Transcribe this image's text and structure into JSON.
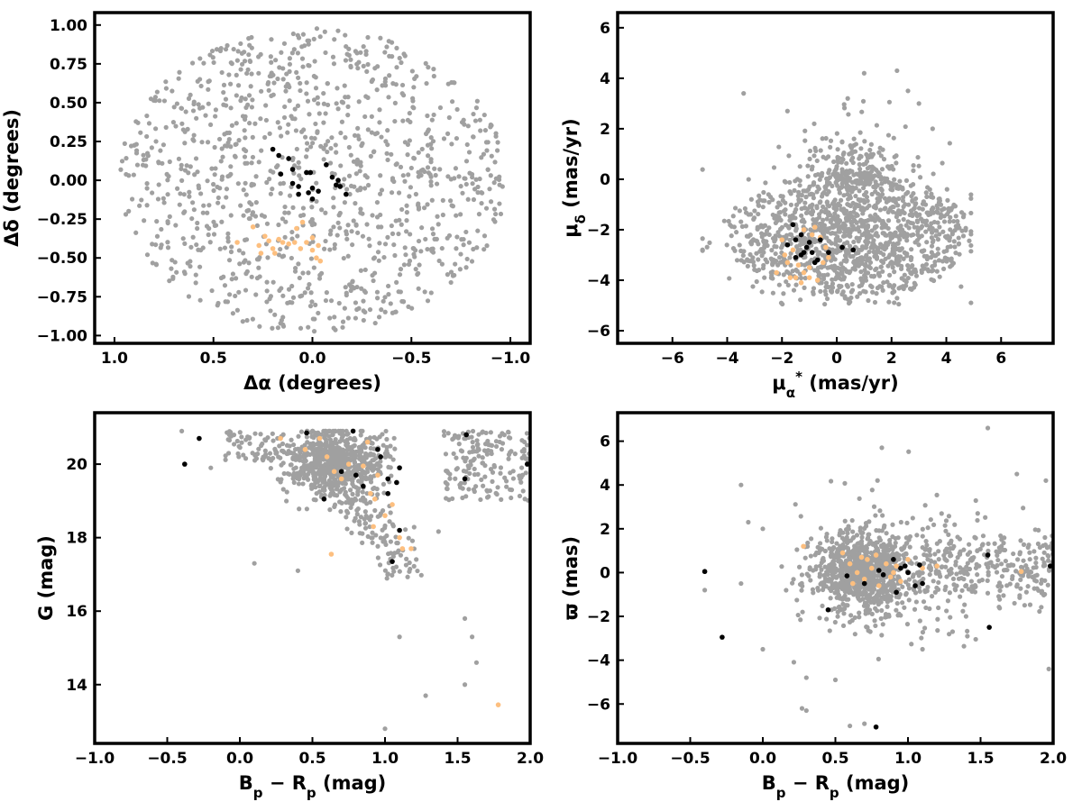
{
  "colors": {
    "background_stars": "#a0a0a0",
    "group_black": "#000000",
    "group_orange": "#fdbf7f",
    "axes": "#000000"
  },
  "chart_data": [
    {
      "id": "sky",
      "type": "scatter",
      "xlabel": "Δα (degrees)",
      "ylabel": "Δδ (degrees)",
      "xlim": [
        1.1,
        -1.1
      ],
      "ylim": [
        -1.05,
        1.08
      ],
      "x_inverted": true,
      "xticks": [
        1.0,
        0.5,
        0.0,
        -0.5,
        -1.0
      ],
      "xtick_labels": [
        "1.0",
        "0.5",
        "0.0",
        "−0.5",
        "−1.0"
      ],
      "yticks": [
        -1.0,
        -0.75,
        -0.5,
        -0.25,
        0.0,
        0.25,
        0.5,
        0.75,
        1.0
      ],
      "ytick_labels": [
        "−1.00",
        "−0.75",
        "−0.50",
        "−0.25",
        "0.00",
        "0.25",
        "0.50",
        "0.75",
        "1.00"
      ],
      "background": {
        "distribution": "uniform disk",
        "center": [
          0,
          0
        ],
        "radius": 0.98,
        "count": 1100
      },
      "series_black": [
        [
          0.2,
          0.2
        ],
        [
          0.17,
          0.16
        ],
        [
          0.12,
          0.14
        ],
        [
          0.16,
          0.04
        ],
        [
          0.1,
          0.07
        ],
        [
          0.1,
          -0.02
        ],
        [
          0.07,
          -0.04
        ],
        [
          0.07,
          -0.09
        ],
        [
          0.03,
          0.05
        ],
        [
          0.01,
          0.05
        ],
        [
          0.0,
          -0.05
        ],
        [
          -0.03,
          -0.07
        ],
        [
          0.0,
          -0.12
        ],
        [
          -0.07,
          0.1
        ],
        [
          -0.1,
          0.02
        ],
        [
          -0.12,
          -0.03
        ],
        [
          -0.14,
          -0.04
        ],
        [
          -0.17,
          -0.09
        ],
        [
          0.02,
          -0.08
        ],
        [
          -0.13,
          0.0
        ]
      ],
      "series_orange": [
        [
          0.38,
          -0.4
        ],
        [
          0.3,
          -0.3
        ],
        [
          0.27,
          -0.42
        ],
        [
          0.26,
          -0.47
        ],
        [
          0.24,
          -0.36
        ],
        [
          0.22,
          -0.39
        ],
        [
          0.2,
          -0.44
        ],
        [
          0.17,
          -0.38
        ],
        [
          0.15,
          -0.4
        ],
        [
          0.12,
          -0.41
        ],
        [
          0.09,
          -0.4
        ],
        [
          0.08,
          -0.31
        ],
        [
          0.05,
          -0.27
        ],
        [
          0.0,
          -0.37
        ],
        [
          0.0,
          -0.45
        ],
        [
          -0.02,
          -0.5
        ],
        [
          -0.04,
          -0.52
        ],
        [
          0.03,
          -0.4
        ],
        [
          -0.03,
          -0.42
        ],
        [
          0.19,
          -0.47
        ],
        [
          0.06,
          -0.44
        ]
      ]
    },
    {
      "id": "pm",
      "type": "scatter",
      "xlabel": "μα* (mas/yr)",
      "ylabel": "μδ (mas/yr)",
      "xlim": [
        -8,
        7.9
      ],
      "ylim": [
        -6.5,
        6.6
      ],
      "xticks": [
        -6,
        -4,
        -2,
        0,
        2,
        4,
        6
      ],
      "xtick_labels": [
        "−6",
        "−4",
        "−2",
        "0",
        "2",
        "4",
        "6"
      ],
      "yticks": [
        -6,
        -4,
        -2,
        0,
        2,
        4,
        6
      ],
      "ytick_labels": [
        "−6",
        "−4",
        "−2",
        "0",
        "2",
        "4",
        "6"
      ],
      "background": {
        "distribution": "elliptical cloud",
        "center": [
          0.5,
          -2.2
        ],
        "semi_axes": [
          4.4,
          2.5
        ],
        "count": 1300,
        "outliers": [
          [
            -3.4,
            3.4
          ],
          [
            1.0,
            4.2
          ],
          [
            2.2,
            4.3
          ],
          [
            2.6,
            3.5
          ],
          [
            3.0,
            3.0
          ],
          [
            -1.8,
            2.7
          ],
          [
            0.4,
            3.2
          ],
          [
            3.5,
            2.0
          ]
        ]
      },
      "series_black": [
        [
          -1.6,
          -1.8
        ],
        [
          -1.3,
          -2.2
        ],
        [
          -1.0,
          -2.5
        ],
        [
          -1.5,
          -2.4
        ],
        [
          -1.8,
          -2.6
        ],
        [
          -1.1,
          -2.7
        ],
        [
          -0.9,
          -2.9
        ],
        [
          -1.3,
          -3.0
        ],
        [
          -0.8,
          -3.3
        ],
        [
          -1.5,
          -3.1
        ],
        [
          -0.7,
          -3.2
        ],
        [
          0.2,
          -2.7
        ],
        [
          0.6,
          -2.8
        ],
        [
          -0.3,
          -2.9
        ],
        [
          -1.2,
          -2.9
        ],
        [
          -0.6,
          -2.4
        ]
      ],
      "series_orange": [
        [
          -2.2,
          -3.7
        ],
        [
          -1.8,
          -3.3
        ],
        [
          -1.5,
          -3.9
        ],
        [
          -1.3,
          -4.1
        ],
        [
          -1.0,
          -3.5
        ],
        [
          -0.7,
          -4.0
        ],
        [
          -0.6,
          -2.3
        ],
        [
          -0.4,
          -2.7
        ],
        [
          -1.2,
          -2.0
        ],
        [
          -0.8,
          -1.9
        ],
        [
          -1.9,
          -3.0
        ],
        [
          -1.4,
          -3.4
        ],
        [
          -1.0,
          -3.9
        ],
        [
          -0.5,
          -3.3
        ],
        [
          -2.0,
          -2.4
        ],
        [
          -1.6,
          -2.8
        ],
        [
          -0.9,
          -2.2
        ],
        [
          -1.2,
          -3.7
        ],
        [
          -0.3,
          -3.1
        ],
        [
          -1.7,
          -3.9
        ]
      ]
    },
    {
      "id": "cmd",
      "type": "scatter",
      "xlabel": "Bp − Rp (mag)",
      "ylabel": "G (mag)",
      "xlim": [
        -1.0,
        2.0
      ],
      "ylim": [
        12.4,
        21.4
      ],
      "y_inverted": false,
      "xticks": [
        -1.0,
        -0.5,
        0.0,
        0.5,
        1.0,
        1.5,
        2.0
      ],
      "xtick_labels": [
        "−1.0",
        "−0.5",
        "0.0",
        "0.5",
        "1.0",
        "1.5",
        "2.0"
      ],
      "yticks": [
        14,
        16,
        18,
        20
      ],
      "ytick_labels": [
        "14",
        "16",
        "18",
        "20"
      ],
      "background": {
        "distribution": "faint clump + tail",
        "clump_center": [
          0.65,
          20.1
        ],
        "count": 1000,
        "outliers": [
          [
            -0.4,
            20.9
          ],
          [
            -0.2,
            19.9
          ],
          [
            0.1,
            17.3
          ],
          [
            0.4,
            17.1
          ],
          [
            1.0,
            12.8
          ],
          [
            1.28,
            13.7
          ],
          [
            1.55,
            14.0
          ],
          [
            1.63,
            14.6
          ],
          [
            1.6,
            15.3
          ],
          [
            1.55,
            15.8
          ],
          [
            1.1,
            15.3
          ]
        ]
      },
      "series_black": [
        [
          -0.38,
          20.0
        ],
        [
          -0.28,
          20.7
        ],
        [
          0.46,
          20.85
        ],
        [
          0.58,
          19.05
        ],
        [
          0.7,
          19.8
        ],
        [
          0.78,
          20.9
        ],
        [
          0.8,
          19.7
        ],
        [
          0.85,
          19.4
        ],
        [
          0.95,
          20.4
        ],
        [
          0.97,
          20.2
        ],
        [
          1.02,
          19.6
        ],
        [
          1.02,
          19.2
        ],
        [
          1.08,
          19.5
        ],
        [
          1.1,
          19.9
        ],
        [
          1.1,
          18.2
        ],
        [
          1.05,
          17.35
        ],
        [
          1.55,
          19.6
        ],
        [
          1.56,
          20.8
        ],
        [
          1.98,
          20.0
        ]
      ],
      "series_orange": [
        [
          0.28,
          20.7
        ],
        [
          0.45,
          20.4
        ],
        [
          0.55,
          20.7
        ],
        [
          0.6,
          20.2
        ],
        [
          0.65,
          19.8
        ],
        [
          0.7,
          19.6
        ],
        [
          0.75,
          20.0
        ],
        [
          0.85,
          19.95
        ],
        [
          0.88,
          20.6
        ],
        [
          0.9,
          19.2
        ],
        [
          0.92,
          18.3
        ],
        [
          0.95,
          19.7
        ],
        [
          1.0,
          18.6
        ],
        [
          1.05,
          18.9
        ],
        [
          1.1,
          18.0
        ],
        [
          1.12,
          17.7
        ],
        [
          1.18,
          17.7
        ],
        [
          0.63,
          17.55
        ],
        [
          1.78,
          13.45
        ],
        [
          0.93,
          19.05
        ]
      ]
    },
    {
      "id": "parallax",
      "type": "scatter",
      "xlabel": "Bp − Rp (mag)",
      "ylabel": "ϖ (mas)",
      "xlim": [
        -1.0,
        2.0
      ],
      "ylim": [
        -7.8,
        7.3
      ],
      "xticks": [
        -1.0,
        -0.5,
        0.0,
        0.5,
        1.0,
        1.5,
        2.0
      ],
      "xtick_labels": [
        "−1.0",
        "−0.5",
        "0.0",
        "0.5",
        "1.0",
        "1.5",
        "2.0"
      ],
      "yticks": [
        -6,
        -4,
        -2,
        0,
        2,
        4,
        6
      ],
      "ytick_labels": [
        "−6",
        "−4",
        "−2",
        "0",
        "2",
        "4",
        "6"
      ],
      "background": {
        "distribution": "horizontal band",
        "center": [
          0.8,
          0.0
        ],
        "count": 1300,
        "outliers": [
          [
            -0.15,
            4.0
          ],
          [
            0.0,
            2.0
          ],
          [
            -0.1,
            2.3
          ],
          [
            1.55,
            6.6
          ],
          [
            0.82,
            5.7
          ],
          [
            0.6,
            -7.0
          ],
          [
            0.7,
            -6.9
          ],
          [
            0.3,
            -6.3
          ],
          [
            0.27,
            -6.2
          ],
          [
            0.3,
            -4.8
          ],
          [
            0.5,
            -4.9
          ],
          [
            1.1,
            -3.5
          ],
          [
            1.4,
            -2.0
          ],
          [
            1.75,
            4.5
          ],
          [
            1.95,
            4.2
          ],
          [
            1.97,
            -4.4
          ],
          [
            -0.4,
            -0.8
          ],
          [
            0.0,
            -3.5
          ],
          [
            -0.15,
            -0.5
          ]
        ]
      },
      "series_black": [
        [
          -0.4,
          0.05
        ],
        [
          -0.28,
          -2.95
        ],
        [
          0.45,
          -1.7
        ],
        [
          0.58,
          -0.15
        ],
        [
          0.7,
          -0.5
        ],
        [
          0.8,
          0.1
        ],
        [
          0.83,
          -0.1
        ],
        [
          0.9,
          0.6
        ],
        [
          0.92,
          -0.9
        ],
        [
          0.95,
          0.2
        ],
        [
          0.98,
          0.3
        ],
        [
          1.0,
          0.0
        ],
        [
          1.05,
          -0.6
        ],
        [
          1.08,
          0.35
        ],
        [
          1.1,
          -0.5
        ],
        [
          0.78,
          -7.05
        ],
        [
          1.55,
          0.8
        ],
        [
          1.56,
          -2.5
        ],
        [
          1.98,
          0.3
        ]
      ],
      "series_orange": [
        [
          0.28,
          1.2
        ],
        [
          0.55,
          0.9
        ],
        [
          0.6,
          0.4
        ],
        [
          0.65,
          0.0
        ],
        [
          0.7,
          -0.3
        ],
        [
          0.72,
          0.6
        ],
        [
          0.75,
          0.2
        ],
        [
          0.8,
          -0.6
        ],
        [
          0.85,
          0.4
        ],
        [
          0.88,
          -0.2
        ],
        [
          0.9,
          0.0
        ],
        [
          0.95,
          -0.4
        ],
        [
          1.0,
          0.6
        ],
        [
          1.1,
          0.2
        ],
        [
          1.2,
          0.3
        ],
        [
          0.62,
          -0.5
        ],
        [
          0.68,
          0.7
        ],
        [
          1.78,
          0.05
        ],
        [
          0.92,
          0.3
        ],
        [
          0.78,
          0.8
        ]
      ]
    }
  ]
}
